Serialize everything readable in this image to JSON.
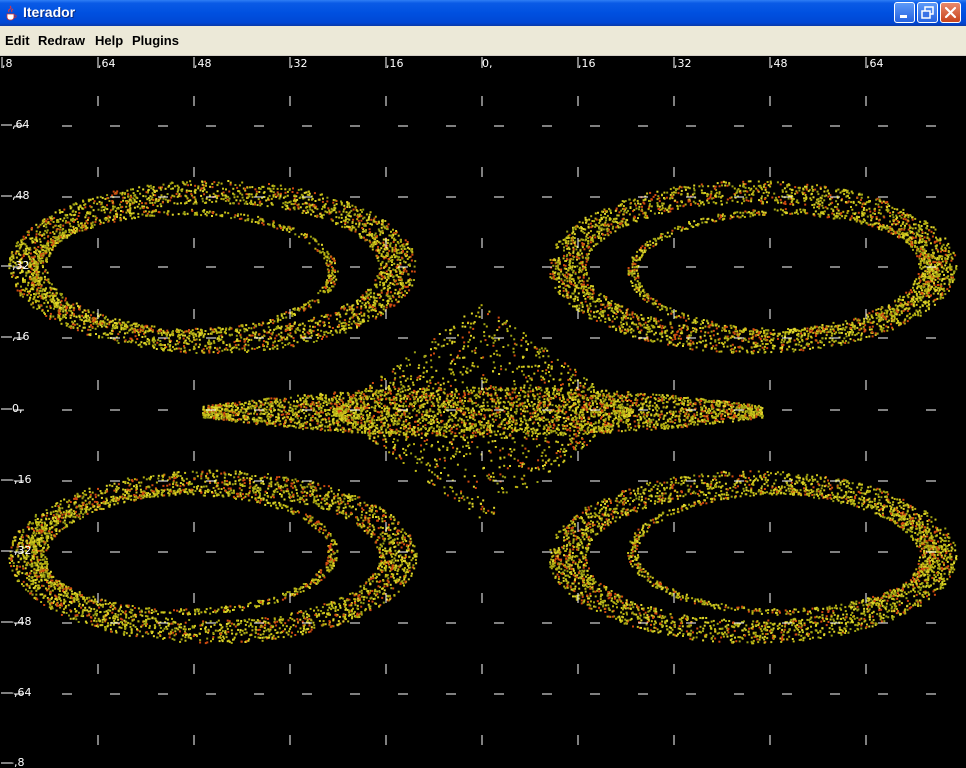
{
  "window": {
    "title": "Iterador",
    "icon": "java-cup-icon"
  },
  "controls": {
    "minimize": "minimize-icon",
    "maximize": "restore-icon",
    "close": "close-icon"
  },
  "menu": {
    "items": [
      "Edit",
      "Redraw",
      "Help",
      "Plugins"
    ]
  },
  "plot": {
    "background": "#000000",
    "axis_color": "#ffffff",
    "point_colors": [
      "#c9c21a",
      "#e0d62a",
      "#b8b010",
      "#d04a10",
      "#9aa014"
    ],
    "x_ticks": [
      ",8",
      ",64",
      ",48",
      ",32",
      ",16",
      "0,",
      ",16",
      ",32",
      ",48",
      ",64"
    ],
    "y_ticks": [
      ",64",
      ",48",
      ",32",
      ",16",
      "0,",
      "-,16",
      "-,32",
      "-,48",
      "-,64",
      "-,8"
    ]
  }
}
